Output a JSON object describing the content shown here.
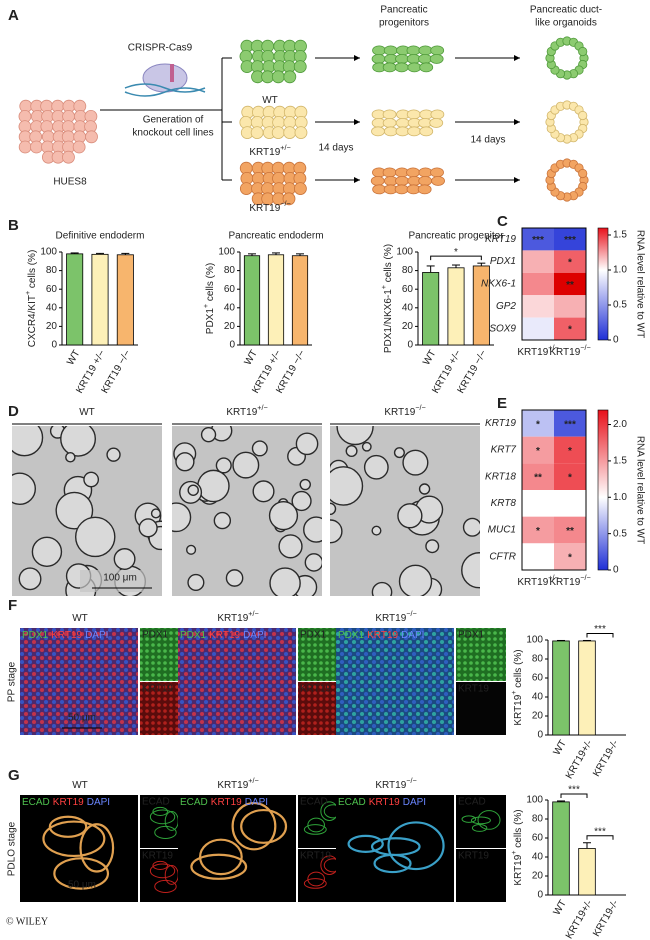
{
  "panel_labels": [
    "A",
    "B",
    "C",
    "D",
    "E",
    "F",
    "G"
  ],
  "schematic": {
    "cas9": "CRISPR-Cas9",
    "generation": [
      "Generation of",
      "knockout cell lines"
    ],
    "origin": "HUES8",
    "progenitors": [
      "Pancreatic",
      "progenitors"
    ],
    "organoids": [
      "Pancreatic duct-",
      "like organoids"
    ],
    "days": [
      "14 days",
      "14 days"
    ]
  },
  "genotypes": [
    [
      "WT"
    ],
    [
      "KRT19",
      "+/−"
    ],
    [
      "KRT19",
      "−/−"
    ]
  ],
  "microscopy": {
    "scale_d": "100 μm",
    "pp": {
      "stage": "PP stage",
      "merge": [
        "PDX1",
        "KRT19",
        "DAPI"
      ],
      "ch1": "PDX1",
      "ch2": "KRT19",
      "scale": "50 μm"
    },
    "pdlo": {
      "stage": "PDLO stage",
      "merge": [
        "ECAD",
        "KRT19",
        "DAPI"
      ],
      "ch1": "ECAD",
      "ch2": "KRT19",
      "scale": "50 μm"
    }
  },
  "copyright": "© WILEY",
  "chart_data": [
    {
      "type": "bar",
      "title": "Definitive endoderm",
      "ylabel": [
        "CXCR4/KIT",
        "+",
        " cells (%)"
      ],
      "categories": [
        "WT",
        "KRT19 +/−",
        "KRT19 −/−"
      ],
      "values": [
        98,
        97.5,
        97
      ],
      "errors": [
        1,
        1,
        1.5
      ],
      "colors": [
        "#7cc36a",
        "#fdf0b8",
        "#f7b56d"
      ],
      "ylim": [
        0,
        100
      ],
      "yticks": [
        0,
        20,
        40,
        60,
        80,
        100
      ]
    },
    {
      "type": "bar",
      "title": "Pancreatic endoderm",
      "ylabel": [
        "PDX1",
        "+",
        " cells (%)"
      ],
      "categories": [
        "WT",
        "KRT19 +/−",
        "KRT19 −/−"
      ],
      "values": [
        96,
        97,
        96
      ],
      "errors": [
        2,
        2,
        2
      ],
      "colors": [
        "#7cc36a",
        "#fdf0b8",
        "#f7b56d"
      ],
      "ylim": [
        0,
        100
      ],
      "yticks": [
        0,
        20,
        40,
        60,
        80,
        100
      ]
    },
    {
      "type": "bar",
      "title": "Pancreatic progenitor",
      "ylabel": [
        "PDX1/NKX6-1",
        "+",
        " cells (%)"
      ],
      "categories": [
        "WT",
        "KRT19 +/−",
        "KRT19 −/−"
      ],
      "values": [
        78,
        83,
        85
      ],
      "errors": [
        7,
        3,
        3
      ],
      "colors": [
        "#7cc36a",
        "#fdf0b8",
        "#f7b56d"
      ],
      "ylim": [
        0,
        100
      ],
      "yticks": [
        0,
        20,
        40,
        60,
        80,
        100
      ],
      "significance": [
        {
          "from": 0,
          "to": 2,
          "label": "*"
        }
      ]
    },
    {
      "type": "heatmap",
      "rows": [
        "KRT19",
        "PDX1",
        "NKX6-1",
        "GP2",
        "SOX9"
      ],
      "columns": [
        [
          "KRT19",
          "+/−"
        ],
        [
          "KRT19",
          "−/−"
        ]
      ],
      "values": [
        [
          0.2,
          0.1
        ],
        [
          1.2,
          1.4
        ],
        [
          1.3,
          1.9
        ],
        [
          1.1,
          1.2
        ],
        [
          0.9,
          1.4
        ]
      ],
      "annotations": [
        [
          "***",
          "***"
        ],
        [
          null,
          "*"
        ],
        [
          null,
          "**"
        ],
        [
          null,
          null
        ],
        [
          null,
          "*"
        ]
      ],
      "colormap": [
        "#1f2fd6",
        "#ffffff",
        "#e8111b"
      ],
      "center": 1,
      "clim": [
        0,
        1.6
      ],
      "cticks": [
        0,
        0.5,
        {
          "value": 1,
          "label": "1.0"
        },
        1.5
      ],
      "clabel": "RNA level relative to WT"
    },
    {
      "type": "heatmap",
      "rows": [
        "KRT19",
        "KRT7",
        "KRT18",
        "KRT8",
        "MUC1",
        "CFTR"
      ],
      "columns": [
        [
          "KRT19",
          "+/−"
        ],
        [
          "KRT19",
          "−/−"
        ]
      ],
      "values": [
        [
          0.7,
          0.2
        ],
        [
          1.5,
          1.9
        ],
        [
          1.6,
          1.9
        ],
        [
          1.0,
          1.0
        ],
        [
          1.5,
          1.6
        ],
        [
          1.0,
          1.4
        ]
      ],
      "annotations": [
        [
          "*",
          "***"
        ],
        [
          "*",
          "*"
        ],
        [
          "**",
          "*"
        ],
        [
          null,
          null
        ],
        [
          "*",
          "**"
        ],
        [
          null,
          "*"
        ]
      ],
      "colormap": [
        "#1f2fd6",
        "#ffffff",
        "#e8111b"
      ],
      "center": 1,
      "clim": [
        0,
        2.2
      ],
      "cticks": [
        0,
        0.5,
        {
          "value": 1,
          "label": "1.0"
        },
        1.5,
        {
          "value": 2,
          "label": "2.0"
        }
      ],
      "clabel": "RNA level relative to WT"
    },
    {
      "type": "bar",
      "ylabel": [
        "KRT19",
        "+",
        " cells (%)"
      ],
      "categories": [
        "WT",
        "KRT19+/-",
        "KRT19-/-"
      ],
      "values": [
        99,
        99,
        0
      ],
      "errors": [
        0.5,
        0.5,
        0
      ],
      "colors": [
        "#7cc36a",
        "#fdf0b8",
        "#f7b56d"
      ],
      "ylim": [
        0,
        100
      ],
      "yticks": [
        0,
        20,
        40,
        60,
        80,
        100
      ],
      "significance": [
        {
          "from": 1,
          "to": 2,
          "label": "***"
        }
      ]
    },
    {
      "type": "bar",
      "ylabel": [
        "KRT19",
        "+",
        " cells (%)"
      ],
      "categories": [
        "WT",
        "KRT19+/-",
        "KRT19-/-"
      ],
      "values": [
        98,
        49,
        0
      ],
      "errors": [
        1,
        6,
        0
      ],
      "colors": [
        "#7cc36a",
        "#fdf0b8",
        "#f7b56d"
      ],
      "ylim": [
        0,
        100
      ],
      "yticks": [
        0,
        20,
        40,
        60,
        80,
        100
      ],
      "significance": [
        {
          "from": 0,
          "to": 1,
          "label": "***"
        },
        {
          "from": 1,
          "to": 2,
          "label": "***"
        }
      ]
    }
  ]
}
